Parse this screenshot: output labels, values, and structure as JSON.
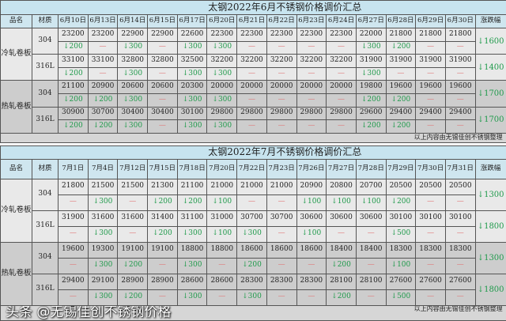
{
  "watermark": "头条 @无锡佳创不锈钢价格",
  "colors": {
    "down": "#1f9a4b",
    "dash": "#e07a7a",
    "title_bg": "#c7e4ef"
  },
  "tables": [
    {
      "title": "太钢2022年6月不锈钢价格调价汇总",
      "col_product": "品名",
      "col_material": "材质",
      "col_change": "涨跌幅",
      "footer": "以上内容由无锡佳创不锈钢整理",
      "dates": [
        "6月10日",
        "6月13日",
        "6月14日",
        "6月15日",
        "6月17日",
        "6月20日",
        "6月21日",
        "6月22日",
        "6月23日",
        "6月24日",
        "6月27日",
        "6月28日",
        "6月29日",
        "6月30日"
      ],
      "groups": [
        {
          "product": "冷轧卷板",
          "type": "cold",
          "rows": [
            {
              "material": "304",
              "prices": [
                "23200",
                "23200",
                "22900",
                "22900",
                "22600",
                "22300",
                "22300",
                "22300",
                "22300",
                "22300",
                "22000",
                "21800",
                "21800",
                "21800"
              ],
              "changes": [
                "↓200",
                "",
                "↓300",
                "",
                "↓300",
                "↓300",
                "",
                "",
                "",
                "",
                "↓300",
                "↓200",
                "",
                ""
              ],
              "total": "↓1600"
            },
            {
              "material": "316L",
              "prices": [
                "33100",
                "33100",
                "32800",
                "32800",
                "32500",
                "32200",
                "32200",
                "32200",
                "32200",
                "32200",
                "31900",
                "31900",
                "31900",
                "31900"
              ],
              "changes": [
                "↓200",
                "",
                "↓300",
                "",
                "↓300",
                "↓300",
                "",
                "",
                "",
                "",
                "↓300",
                "",
                "",
                ""
              ],
              "total": "↓1400"
            }
          ]
        },
        {
          "product": "热轧卷板",
          "type": "hot",
          "rows": [
            {
              "material": "304",
              "prices": [
                "21100",
                "20900",
                "20600",
                "20600",
                "20300",
                "20000",
                "20000",
                "20000",
                "20000",
                "20000",
                "19800",
                "19600",
                "19600",
                "19600"
              ],
              "changes": [
                "↓200",
                "↓200",
                "↓300",
                "",
                "↓300",
                "↓300",
                "",
                "",
                "",
                "",
                "↓200",
                "↓200",
                "",
                ""
              ],
              "total": "↓1700"
            },
            {
              "material": "316L",
              "prices": [
                "30900",
                "30700",
                "30400",
                "30400",
                "30100",
                "29800",
                "29800",
                "29800",
                "29800",
                "29800",
                "29600",
                "29400",
                "29400",
                "29400"
              ],
              "changes": [
                "↓200",
                "↓200",
                "↓300",
                "",
                "↓300",
                "↓300",
                "",
                "",
                "",
                "",
                "↓200",
                "↓200",
                "",
                ""
              ],
              "total": "↓1700"
            }
          ]
        }
      ]
    },
    {
      "title": "太钢2022年7月不锈钢价格调价汇总",
      "col_product": "品名",
      "col_material": "材质",
      "col_change": "涨跌幅",
      "footer": "以上内容由无锡佳创不锈钢整理",
      "dates": [
        "7月1日",
        "7月4日",
        "7月12日",
        "7月15日",
        "7月18日",
        "7月20日",
        "7月22日",
        "7月23日",
        "7月26日",
        "7月27日",
        "7月28日",
        "7月29日",
        "7月30日",
        "7月31日"
      ],
      "groups": [
        {
          "product": "冷轧卷板",
          "type": "cold",
          "rows": [
            {
              "material": "304",
              "prices": [
                "21800",
                "21500",
                "21500",
                "21300",
                "21100",
                "21000",
                "21000",
                "21000",
                "20900",
                "20800",
                "20700",
                "20500",
                "20500",
                "20500"
              ],
              "changes": [
                "",
                "↓300",
                "",
                "↓200",
                "↓200",
                "↓100",
                "",
                "",
                "↓100",
                "↓100",
                "↓100",
                "↓200",
                "",
                ""
              ],
              "total": "↓1300"
            },
            {
              "material": "316L",
              "prices": [
                "31900",
                "31600",
                "31600",
                "31400",
                "31100",
                "31000",
                "30700",
                "30700",
                "30600",
                "30600",
                "30600",
                "30100",
                "30100",
                "30100"
              ],
              "changes": [
                "",
                "↓300",
                "",
                "↓200",
                "↓300",
                "↓100",
                "↓300",
                "",
                "↓100",
                "",
                "",
                "↓500",
                "",
                ""
              ],
              "total": "↓1800"
            }
          ]
        },
        {
          "product": "热轧卷板",
          "type": "hot",
          "rows": [
            {
              "material": "304",
              "prices": [
                "19600",
                "19300",
                "19100",
                "19100",
                "18800",
                "18800",
                "18600",
                "18600",
                "18600",
                "18400",
                "18400",
                "18300",
                "18300",
                "18300"
              ],
              "changes": [
                "",
                "↓300",
                "↓200",
                "",
                "↓300",
                "",
                "↓200",
                "",
                "",
                "↓200",
                "",
                "↓100",
                "",
                ""
              ],
              "total": "↓1300"
            },
            {
              "material": "316L",
              "prices": [
                "29400",
                "29100",
                "28900",
                "28900",
                "28600",
                "28600",
                "28300",
                "28300",
                "28300",
                "28100",
                "28100",
                "27600",
                "27600",
                "27600"
              ],
              "changes": [
                "",
                "↓300",
                "↓200",
                "",
                "↓300",
                "",
                "↓300",
                "",
                "",
                "↓200",
                "",
                "↓500",
                "",
                ""
              ],
              "total": "↓1800"
            }
          ]
        }
      ]
    }
  ]
}
